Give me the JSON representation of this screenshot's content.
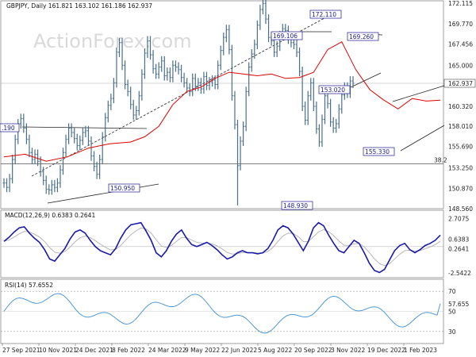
{
  "watermark": "ActionForex.com",
  "chart_data": {
    "type": "line",
    "symbol": "GBPJPY",
    "timeframe": "Daily",
    "header_values": "161.821 163.102 161.186 162.937",
    "x_tick_labels": [
      "27 Sep 2021",
      "10 Nov 2021",
      "24 Dec 2021",
      "8 Feb 2022",
      "24 Mar 2022",
      "9 May 2022",
      "22 Jun 2022",
      "5 Aug 2022",
      "20 Sep 2022",
      "3 Nov 2022",
      "19 Dec 2022",
      "1 Feb 2023"
    ],
    "price_panel": {
      "y_ticks": [
        "172.115",
        "169.770",
        "167.456",
        "165.000",
        "162.937",
        "160.320",
        "158.010",
        "155.690",
        "153.250",
        "150.870",
        "148.560"
      ],
      "ylim": [
        148.56,
        172.4
      ],
      "last_price": 162.937,
      "fib_label": "38.2",
      "fib_level": 153.7,
      "annotations": [
        "172.110",
        "169.106",
        "169.260",
        "153.020",
        "155.330",
        "150.950",
        "148.930",
        ".190"
      ],
      "price_series": [
        [
          0,
          151.5
        ],
        [
          4,
          151.0
        ],
        [
          8,
          152.0
        ],
        [
          12,
          154.2
        ],
        [
          16,
          156.5
        ],
        [
          20,
          158.3
        ],
        [
          24,
          158.9
        ],
        [
          28,
          157.8
        ],
        [
          32,
          156.5
        ],
        [
          36,
          155.0
        ],
        [
          40,
          154.2
        ],
        [
          44,
          154.8
        ],
        [
          48,
          154.0
        ],
        [
          52,
          152.8
        ],
        [
          56,
          151.8
        ],
        [
          60,
          150.8
        ],
        [
          64,
          150.7
        ],
        [
          68,
          151.3
        ],
        [
          72,
          151.0
        ],
        [
          76,
          151.5
        ],
        [
          80,
          153.0
        ],
        [
          84,
          155.0
        ],
        [
          88,
          156.5
        ],
        [
          92,
          157.8
        ],
        [
          96,
          157.3
        ],
        [
          100,
          156.6
        ],
        [
          104,
          155.8
        ],
        [
          108,
          156.4
        ],
        [
          112,
          157.3
        ],
        [
          116,
          157.5
        ],
        [
          120,
          156.3
        ],
        [
          124,
          154.6
        ],
        [
          128,
          153.4
        ],
        [
          132,
          152.5
        ],
        [
          136,
          154.2
        ],
        [
          140,
          156.8
        ],
        [
          144,
          159.0
        ],
        [
          148,
          160.4
        ],
        [
          152,
          161.2
        ],
        [
          156,
          163.0
        ],
        [
          160,
          166.5
        ],
        [
          164,
          167.6
        ],
        [
          168,
          165.0
        ],
        [
          172,
          162.8
        ],
        [
          176,
          162.0
        ],
        [
          180,
          160.5
        ],
        [
          184,
          159.3
        ],
        [
          188,
          159.8
        ],
        [
          192,
          161.5
        ],
        [
          196,
          164.0
        ],
        [
          200,
          166.4
        ],
        [
          204,
          167.8
        ],
        [
          208,
          166.2
        ],
        [
          212,
          164.6
        ],
        [
          216,
          164.0
        ],
        [
          220,
          164.8
        ],
        [
          224,
          165.5
        ],
        [
          228,
          163.8
        ],
        [
          232,
          164.2
        ],
        [
          236,
          163.6
        ],
        [
          240,
          165.0
        ],
        [
          244,
          164.8
        ],
        [
          248,
          164.5
        ],
        [
          252,
          163.6
        ],
        [
          256,
          163.0
        ],
        [
          260,
          162.4
        ],
        [
          264,
          162.0
        ],
        [
          268,
          163.5
        ],
        [
          272,
          162.6
        ],
        [
          276,
          163.0
        ],
        [
          280,
          162.3
        ],
        [
          284,
          163.7
        ],
        [
          288,
          162.7
        ],
        [
          292,
          163.1
        ],
        [
          296,
          163.3
        ],
        [
          300,
          162.8
        ],
        [
          304,
          165.0
        ],
        [
          308,
          166.7
        ],
        [
          312,
          168.2
        ],
        [
          316,
          169.1
        ],
        [
          320,
          166.8
        ],
        [
          324,
          161.5
        ],
        [
          328,
          158.2
        ],
        [
          332,
          153.5
        ],
        [
          336,
          156.3
        ],
        [
          340,
          158.0
        ],
        [
          344,
          162.0
        ],
        [
          348,
          164.8
        ],
        [
          352,
          166.3
        ],
        [
          356,
          167.4
        ],
        [
          360,
          169.6
        ],
        [
          364,
          171.4
        ],
        [
          368,
          172.1
        ],
        [
          372,
          170.3
        ],
        [
          376,
          168.2
        ],
        [
          380,
          167.8
        ],
        [
          384,
          166.5
        ],
        [
          388,
          167.2
        ],
        [
          392,
          168.4
        ],
        [
          396,
          169.2
        ],
        [
          400,
          169.0
        ],
        [
          404,
          168.0
        ],
        [
          408,
          167.6
        ],
        [
          412,
          167.4
        ],
        [
          416,
          166.5
        ],
        [
          420,
          164.3
        ],
        [
          424,
          160.3
        ],
        [
          428,
          158.7
        ],
        [
          432,
          161.5
        ],
        [
          436,
          163.0
        ],
        [
          440,
          160.3
        ],
        [
          444,
          157.7
        ],
        [
          448,
          156.2
        ],
        [
          452,
          158.8
        ],
        [
          456,
          161.5
        ],
        [
          460,
          160.6
        ],
        [
          464,
          158.5
        ],
        [
          468,
          157.8
        ],
        [
          472,
          158.3
        ],
        [
          476,
          160.0
        ],
        [
          480,
          161.6
        ],
        [
          484,
          162.5
        ],
        [
          488,
          161.8
        ],
        [
          492,
          163.2
        ],
        [
          496,
          162.937
        ]
      ],
      "sma_series": [
        [
          0,
          154.5
        ],
        [
          30,
          154.8
        ],
        [
          60,
          154.0
        ],
        [
          90,
          154.5
        ],
        [
          120,
          155.5
        ],
        [
          150,
          156.0
        ],
        [
          180,
          156.2
        ],
        [
          200,
          156.8
        ],
        [
          220,
          158.0
        ],
        [
          240,
          160.5
        ],
        [
          260,
          162.0
        ],
        [
          280,
          162.5
        ],
        [
          300,
          163.5
        ],
        [
          320,
          164.2
        ],
        [
          340,
          164.0
        ],
        [
          360,
          163.8
        ],
        [
          380,
          164.0
        ],
        [
          400,
          163.5
        ],
        [
          420,
          163.6
        ],
        [
          440,
          164.2
        ],
        [
          460,
          166.8
        ],
        [
          480,
          167.7
        ],
        [
          500,
          164.5
        ],
        [
          520,
          162.2
        ],
        [
          540,
          161.0
        ],
        [
          560,
          160.0
        ],
        [
          580,
          161.2
        ],
        [
          600,
          160.9
        ],
        [
          620,
          161.0
        ]
      ]
    },
    "macd_panel": {
      "label": "MACD(12,26,9) 0.6383 0.2641",
      "y_ticks": [
        "2.7075",
        "0.6383",
        "0.2641",
        "-2.5422"
      ],
      "ylim": [
        -3.0,
        3.5
      ],
      "zero_line": 0.0
    },
    "rsi_panel": {
      "label": "RSI(14) 57.6552",
      "y_ticks": [
        "70",
        "57.655",
        "50",
        "30"
      ],
      "ylim": [
        18,
        82
      ],
      "levels": [
        70,
        30
      ]
    }
  }
}
